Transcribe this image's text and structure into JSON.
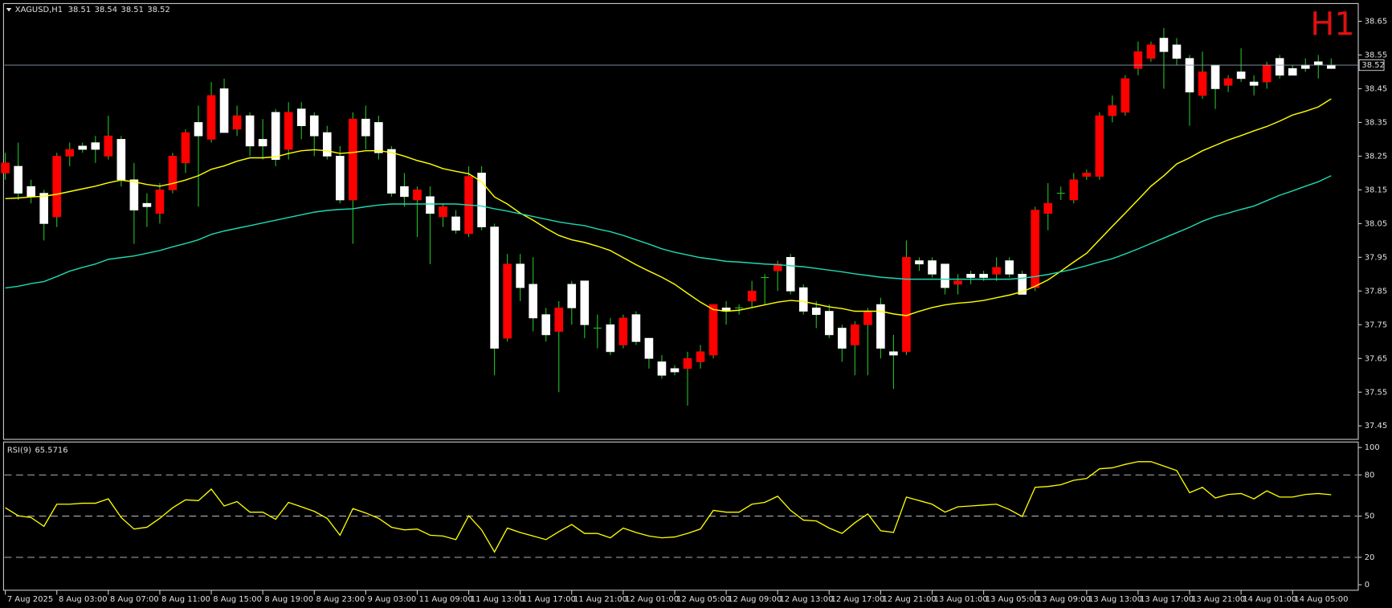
{
  "chart_data": [
    {
      "type": "candlestick",
      "symbol": "XAGUSD,H1",
      "period_label": "H1",
      "categories": [
        "7 Aug 2025",
        null,
        null,
        null,
        "8 Aug 03:00",
        null,
        null,
        null,
        "8 Aug 07:00",
        null,
        null,
        null,
        "8 Aug 11:00",
        null,
        null,
        null,
        "8 Aug 15:00",
        null,
        null,
        null,
        "8 Aug 19:00",
        null,
        null,
        null,
        "8 Aug 23:00",
        null,
        null,
        null,
        "9 Aug 03:00",
        null,
        null,
        null,
        "11 Aug 09:00",
        null,
        null,
        null,
        "11 Aug 13:00",
        null,
        null,
        null,
        "11 Aug 17:00",
        null,
        null,
        null,
        "11 Aug 21:00",
        null,
        null,
        null,
        "12 Aug 01:00",
        null,
        null,
        null,
        "12 Aug 05:00",
        null,
        null,
        null,
        "12 Aug 09:00",
        null,
        null,
        null,
        "12 Aug 13:00",
        null,
        null,
        null,
        "12 Aug 17:00",
        null,
        null,
        null,
        "12 Aug 21:00",
        null,
        null,
        null,
        "13 Aug 01:00",
        null,
        null,
        null,
        "13 Aug 05:00",
        null,
        null,
        null,
        "13 Aug 09:00",
        null,
        null,
        null,
        "13 Aug 13:00",
        null,
        null,
        null,
        "13 Aug 17:00",
        null,
        null,
        null,
        "13 Aug 21:00",
        null,
        null,
        null,
        "14 Aug 01:00",
        null,
        null,
        null,
        "14 Aug 05:00",
        null,
        null,
        null
      ],
      "open": [
        38.23,
        38.14,
        38.13,
        38.05,
        38.25,
        38.27,
        38.27,
        38.27,
        38.31,
        38.18,
        38.09,
        38.1,
        38.15,
        38.25,
        38.32,
        38.31,
        38.43,
        38.32,
        38.37,
        38.28,
        38.28,
        38.24,
        38.38,
        38.34,
        38.31,
        38.25,
        38.12,
        38.36,
        38.31,
        38.26,
        38.14,
        38.13,
        38.15,
        38.08,
        38.1,
        38.03,
        38.19,
        38.04,
        37.68,
        37.93,
        37.86,
        37.77,
        37.72,
        37.8,
        37.8,
        37.75,
        37.74,
        37.67,
        37.77,
        37.7,
        37.65,
        37.6,
        37.61,
        37.65,
        37.67,
        37.81,
        37.79,
        37.8,
        37.85,
        37.89,
        37.93,
        37.85,
        37.79,
        37.78,
        37.72,
        37.68,
        37.75,
        37.79,
        37.68,
        37.66,
        37.95,
        37.93,
        37.9,
        37.86,
        37.88,
        37.89,
        37.89,
        37.92,
        37.9,
        37.84,
        38.09,
        38.11,
        38.14,
        38.18,
        38.2,
        38.37,
        38.4,
        38.48,
        38.56,
        38.58,
        38.56,
        38.54,
        38.44,
        38.5,
        38.45,
        38.48,
        38.48,
        38.46,
        38.52,
        38.49,
        38.49,
        38.51,
        38.52,
        38.51
      ],
      "high": [
        38.26,
        38.29,
        38.18,
        38.15,
        38.26,
        38.29,
        38.29,
        38.31,
        38.37,
        38.31,
        38.23,
        38.14,
        38.17,
        38.26,
        38.33,
        38.4,
        38.47,
        38.48,
        38.4,
        38.38,
        38.36,
        38.39,
        38.41,
        38.41,
        38.38,
        38.34,
        38.28,
        38.38,
        38.4,
        38.37,
        38.28,
        38.2,
        38.16,
        38.16,
        38.11,
        38.09,
        38.22,
        38.22,
        38.05,
        37.96,
        37.96,
        37.95,
        37.8,
        37.82,
        37.88,
        37.88,
        37.78,
        37.77,
        37.78,
        37.79,
        37.71,
        37.66,
        37.63,
        37.67,
        37.69,
        37.81,
        37.82,
        37.81,
        37.88,
        37.9,
        37.94,
        37.96,
        37.87,
        37.82,
        37.81,
        37.75,
        37.76,
        37.8,
        37.83,
        37.72,
        38.0,
        37.95,
        37.95,
        37.93,
        37.9,
        37.91,
        37.91,
        37.95,
        37.95,
        37.91,
        38.1,
        38.17,
        38.16,
        38.2,
        38.21,
        38.38,
        38.43,
        38.49,
        38.59,
        38.59,
        38.63,
        38.6,
        38.55,
        38.56,
        38.52,
        38.49,
        38.57,
        38.49,
        38.53,
        38.55,
        38.52,
        38.54,
        38.55,
        38.54
      ],
      "low": [
        38.18,
        38.12,
        38.11,
        38.0,
        38.04,
        38.22,
        38.26,
        38.23,
        38.24,
        38.16,
        37.99,
        38.04,
        38.05,
        38.14,
        38.2,
        38.1,
        38.29,
        38.32,
        38.31,
        38.25,
        38.24,
        38.22,
        38.24,
        38.3,
        38.25,
        38.24,
        38.11,
        37.99,
        38.27,
        38.24,
        38.13,
        38.1,
        38.01,
        37.93,
        38.04,
        38.02,
        38.01,
        38.03,
        37.6,
        37.7,
        37.82,
        37.73,
        37.7,
        37.55,
        37.75,
        37.71,
        37.68,
        37.66,
        37.68,
        37.69,
        37.62,
        37.59,
        37.6,
        37.51,
        37.62,
        37.65,
        37.75,
        37.78,
        37.8,
        37.81,
        37.85,
        37.84,
        37.78,
        37.74,
        37.71,
        37.64,
        37.6,
        37.6,
        37.65,
        37.56,
        37.66,
        37.91,
        37.89,
        37.84,
        37.84,
        37.87,
        37.88,
        37.88,
        37.89,
        37.84,
        37.85,
        38.03,
        38.12,
        38.11,
        38.18,
        38.18,
        38.35,
        38.37,
        38.49,
        38.53,
        38.45,
        38.52,
        38.34,
        38.42,
        38.39,
        38.44,
        38.47,
        38.43,
        38.45,
        38.48,
        38.49,
        38.5,
        38.48,
        38.51
      ],
      "close": [
        38.2,
        38.22,
        38.16,
        38.14,
        38.07,
        38.25,
        38.28,
        38.29,
        38.25,
        38.3,
        38.18,
        38.11,
        38.08,
        38.15,
        38.23,
        38.35,
        38.3,
        38.45,
        38.33,
        38.37,
        38.3,
        38.38,
        38.27,
        38.39,
        38.37,
        38.32,
        38.25,
        38.12,
        38.36,
        38.35,
        38.27,
        38.16,
        38.12,
        38.13,
        38.07,
        38.07,
        38.02,
        38.2,
        38.04,
        37.71,
        37.93,
        37.87,
        37.78,
        37.73,
        37.87,
        37.88,
        37.74,
        37.75,
        37.69,
        37.78,
        37.71,
        37.64,
        37.62,
        37.62,
        37.64,
        37.66,
        37.8,
        37.8,
        37.82,
        37.89,
        37.91,
        37.95,
        37.86,
        37.8,
        37.79,
        37.74,
        37.69,
        37.75,
        37.81,
        37.67,
        37.67,
        37.94,
        37.94,
        37.93,
        37.87,
        37.9,
        37.9,
        37.9,
        37.94,
        37.9,
        37.86,
        38.08,
        38.14,
        38.12,
        38.19,
        38.19,
        38.37,
        38.38,
        38.51,
        38.54,
        38.6,
        38.58,
        38.54,
        38.43,
        38.52,
        38.46,
        38.5,
        38.47,
        38.47,
        38.54,
        38.51,
        38.52,
        38.53,
        38.52
      ],
      "lines": [
        {
          "color": "#ffff00",
          "values": [
            38.124,
            38.126,
            38.129,
            38.131,
            38.137,
            38.145,
            38.153,
            38.161,
            38.171,
            38.179,
            38.174,
            38.166,
            38.161,
            38.169,
            38.179,
            38.192,
            38.211,
            38.221,
            38.235,
            38.245,
            38.245,
            38.248,
            38.258,
            38.266,
            38.269,
            38.266,
            38.258,
            38.261,
            38.266,
            38.266,
            38.261,
            38.25,
            38.237,
            38.227,
            38.213,
            38.205,
            38.198,
            38.174,
            38.129,
            38.108,
            38.081,
            38.06,
            38.036,
            38.015,
            38.002,
            37.994,
            37.983,
            37.97,
            37.949,
            37.928,
            37.909,
            37.891,
            37.87,
            37.843,
            37.817,
            37.795,
            37.79,
            37.793,
            37.801,
            37.809,
            37.817,
            37.822,
            37.819,
            37.811,
            37.803,
            37.798,
            37.79,
            37.79,
            37.79,
            37.782,
            37.777,
            37.79,
            37.801,
            37.809,
            37.814,
            37.817,
            37.822,
            37.83,
            37.838,
            37.848,
            37.864,
            37.883,
            37.909,
            37.936,
            37.962,
            38.002,
            38.042,
            38.081,
            38.121,
            38.161,
            38.192,
            38.227,
            38.245,
            38.266,
            38.282,
            38.298,
            38.311,
            38.325,
            38.338,
            38.354,
            38.372,
            38.383,
            38.396,
            38.42
          ]
        },
        {
          "color": "#20d8b0",
          "values": [
            37.859,
            37.864,
            37.872,
            37.878,
            37.893,
            37.909,
            37.92,
            37.93,
            37.944,
            37.949,
            37.954,
            37.962,
            37.97,
            37.981,
            37.991,
            38.002,
            38.018,
            38.028,
            38.036,
            38.044,
            38.052,
            38.06,
            38.068,
            38.076,
            38.084,
            38.089,
            38.092,
            38.094,
            38.1,
            38.105,
            38.108,
            38.108,
            38.108,
            38.108,
            38.108,
            38.108,
            38.105,
            38.102,
            38.094,
            38.087,
            38.079,
            38.071,
            38.063,
            38.055,
            38.049,
            38.044,
            38.034,
            38.026,
            38.015,
            38.002,
            37.989,
            37.975,
            37.965,
            37.957,
            37.949,
            37.944,
            37.938,
            37.936,
            37.933,
            37.93,
            37.928,
            37.925,
            37.922,
            37.917,
            37.912,
            37.907,
            37.901,
            37.896,
            37.891,
            37.888,
            37.885,
            37.885,
            37.885,
            37.885,
            37.885,
            37.885,
            37.885,
            37.885,
            37.885,
            37.888,
            37.893,
            37.899,
            37.907,
            37.915,
            37.925,
            37.936,
            37.946,
            37.96,
            37.975,
            37.991,
            38.007,
            38.023,
            38.039,
            38.057,
            38.071,
            38.081,
            38.092,
            38.102,
            38.118,
            38.134,
            38.147,
            38.161,
            38.174,
            38.192
          ]
        }
      ],
      "up_color": "#ffffff",
      "down_color": "#ff0000",
      "wick_color": "#22c022",
      "price_line_color": "#8a9aae",
      "ylim": [
        37.41,
        38.7
      ],
      "yticks": [
        37.45,
        37.55,
        37.65,
        37.75,
        37.85,
        37.95,
        38.05,
        38.15,
        38.25,
        38.35,
        38.45,
        38.55,
        38.65
      ]
    },
    {
      "type": "line",
      "label": "RSI(9)",
      "color": "#ffff00",
      "values": [
        56.1,
        50.3,
        49.0,
        42.6,
        58.7,
        58.7,
        59.4,
        59.4,
        62.6,
        49.0,
        40.6,
        41.9,
        48.4,
        56.1,
        61.9,
        61.3,
        69.7,
        57.4,
        60.6,
        52.9,
        52.9,
        47.7,
        60.0,
        56.8,
        53.5,
        48.4,
        36.1,
        55.5,
        52.3,
        48.4,
        41.9,
        40.0,
        40.6,
        36.1,
        35.5,
        32.9,
        50.3,
        40.0,
        23.9,
        41.3,
        38.1,
        35.5,
        32.9,
        38.7,
        43.9,
        37.4,
        37.4,
        34.2,
        41.3,
        38.1,
        35.5,
        34.2,
        34.8,
        37.4,
        40.6,
        54.2,
        52.9,
        52.9,
        58.7,
        60.0,
        64.5,
        54.2,
        47.1,
        46.5,
        41.3,
        37.4,
        45.2,
        51.6,
        39.4,
        38.1,
        63.9,
        61.3,
        58.7,
        52.9,
        56.8,
        57.4,
        58.1,
        58.7,
        54.8,
        49.7,
        71.0,
        71.6,
        72.9,
        76.1,
        77.4,
        84.5,
        85.2,
        87.7,
        89.7,
        89.7,
        86.5,
        83.2,
        67.1,
        71.0,
        63.2,
        65.8,
        66.5,
        62.6,
        68.4,
        63.9,
        63.9,
        65.8,
        66.5,
        65.5716
      ],
      "ylim": [
        -4,
        104
      ],
      "yticks": [
        0,
        20,
        50,
        80,
        100
      ],
      "levels": [
        20,
        50,
        80
      ]
    }
  ]
}
